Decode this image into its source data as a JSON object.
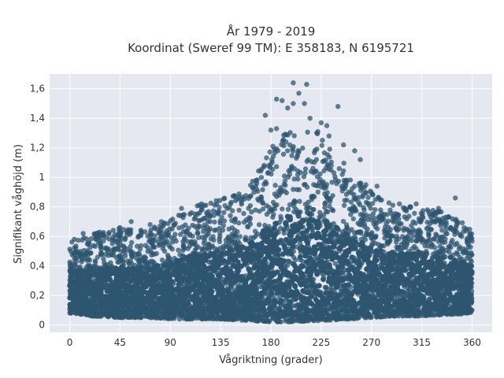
{
  "chart_data": {
    "type": "scatter",
    "title_lines": [
      "År 1979 - 2019",
      "Koordinat (Sweref 99 TM): E 358183, N 6195721"
    ],
    "xlabel": "Vågriktning (grader)",
    "ylabel": "Signifikant våghöjd (m)",
    "xlim": [
      -18,
      378
    ],
    "ylim": [
      -0.05,
      1.7
    ],
    "x_ticks": [
      0,
      45,
      90,
      135,
      180,
      225,
      270,
      315,
      360
    ],
    "y_ticks": [
      0,
      0.2,
      0.4,
      0.6,
      0.8,
      1,
      1.2,
      1.4,
      1.6
    ],
    "y_tick_labels": [
      "0",
      "0,2",
      "0,4",
      "0,6",
      "0,8",
      "1",
      "1,2",
      "1,4",
      "1,6"
    ],
    "marker_color": "#2e5570",
    "marker_opacity": 0.75,
    "plot_background": "#e5e8f0",
    "grid": true,
    "envelope": [
      {
        "x": 0,
        "low": 0.08,
        "high": 0.58
      },
      {
        "x": 20,
        "low": 0.06,
        "high": 0.62
      },
      {
        "x": 45,
        "low": 0.05,
        "high": 0.66
      },
      {
        "x": 70,
        "low": 0.05,
        "high": 0.64
      },
      {
        "x": 90,
        "low": 0.04,
        "high": 0.72
      },
      {
        "x": 110,
        "low": 0.04,
        "high": 0.8
      },
      {
        "x": 135,
        "low": 0.04,
        "high": 0.85
      },
      {
        "x": 160,
        "low": 0.03,
        "high": 0.95
      },
      {
        "x": 180,
        "low": 0.02,
        "high": 1.2
      },
      {
        "x": 200,
        "low": 0.02,
        "high": 1.35
      },
      {
        "x": 225,
        "low": 0.03,
        "high": 1.3
      },
      {
        "x": 250,
        "low": 0.04,
        "high": 1.05
      },
      {
        "x": 270,
        "low": 0.05,
        "high": 0.9
      },
      {
        "x": 290,
        "low": 0.06,
        "high": 0.82
      },
      {
        "x": 315,
        "low": 0.06,
        "high": 0.8
      },
      {
        "x": 340,
        "low": 0.07,
        "high": 0.76
      },
      {
        "x": 360,
        "low": 0.08,
        "high": 0.64
      }
    ],
    "outliers": [
      {
        "x": 200,
        "y": 1.64
      },
      {
        "x": 212,
        "y": 1.63
      },
      {
        "x": 205,
        "y": 1.57
      },
      {
        "x": 185,
        "y": 1.53
      },
      {
        "x": 190,
        "y": 1.52
      },
      {
        "x": 200,
        "y": 1.5
      },
      {
        "x": 195,
        "y": 1.47
      },
      {
        "x": 210,
        "y": 1.5
      },
      {
        "x": 240,
        "y": 1.48
      },
      {
        "x": 175,
        "y": 1.42
      },
      {
        "x": 215,
        "y": 1.4
      },
      {
        "x": 225,
        "y": 1.37
      },
      {
        "x": 230,
        "y": 1.35
      },
      {
        "x": 185,
        "y": 1.33
      },
      {
        "x": 222,
        "y": 1.31
      },
      {
        "x": 180,
        "y": 1.32
      },
      {
        "x": 232,
        "y": 1.28
      },
      {
        "x": 245,
        "y": 1.22
      },
      {
        "x": 255,
        "y": 1.18
      },
      {
        "x": 260,
        "y": 1.12
      },
      {
        "x": 55,
        "y": 0.7
      },
      {
        "x": 72,
        "y": 0.68
      },
      {
        "x": 82,
        "y": 0.7
      },
      {
        "x": 100,
        "y": 0.79
      },
      {
        "x": 255,
        "y": 0.94
      },
      {
        "x": 265,
        "y": 0.95
      },
      {
        "x": 275,
        "y": 0.94
      },
      {
        "x": 295,
        "y": 0.82
      },
      {
        "x": 305,
        "y": 0.8
      },
      {
        "x": 310,
        "y": 0.82
      },
      {
        "x": 320,
        "y": 0.78
      },
      {
        "x": 330,
        "y": 0.79
      },
      {
        "x": 345,
        "y": 0.86
      },
      {
        "x": 322,
        "y": 0.75
      },
      {
        "x": 338,
        "y": 0.73
      },
      {
        "x": 355,
        "y": 0.65
      },
      {
        "x": 12,
        "y": 0.62
      },
      {
        "x": 30,
        "y": 0.61
      },
      {
        "x": 45,
        "y": 0.66
      },
      {
        "x": 118,
        "y": 0.82
      }
    ]
  }
}
